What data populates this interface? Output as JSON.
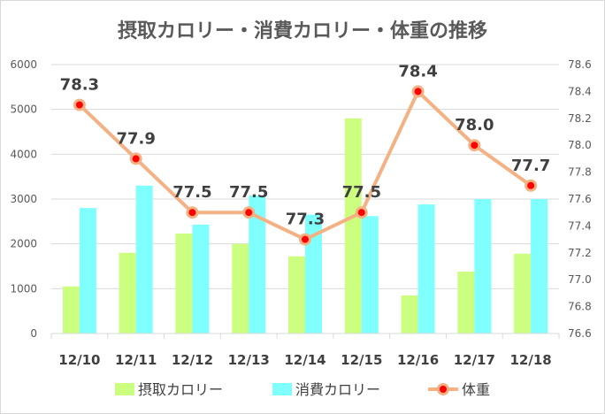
{
  "chart_data": {
    "type": "bar+line",
    "title": "摂取カロリー・消費カロリー・体重の推移",
    "categories": [
      "12/10",
      "12/11",
      "12/12",
      "12/13",
      "12/14",
      "12/15",
      "12/16",
      "12/17",
      "12/18"
    ],
    "y_left": {
      "range": [
        0,
        6000
      ],
      "ticks": [
        "0",
        "1000",
        "2000",
        "3000",
        "4000",
        "5000",
        "6000"
      ]
    },
    "y_right": {
      "range": [
        76.6,
        78.6
      ],
      "ticks": [
        "76.6",
        "76.8",
        "77.0",
        "77.2",
        "77.4",
        "77.6",
        "77.8",
        "78.0",
        "78.2",
        "78.4",
        "78.6"
      ]
    },
    "grid": true,
    "legend_position": "bottom",
    "series": [
      {
        "name": "摂取カロリー",
        "type": "bar",
        "axis": "left",
        "color": "#ccff80",
        "values": [
          1050,
          1800,
          2230,
          2000,
          1720,
          4800,
          850,
          1380,
          1780
        ]
      },
      {
        "name": "消費カロリー",
        "type": "bar",
        "axis": "left",
        "color": "#80ffff",
        "values": [
          2800,
          3300,
          2430,
          3080,
          2650,
          2620,
          2880,
          3000,
          3000
        ]
      },
      {
        "name": "体重",
        "type": "line",
        "axis": "right",
        "color": "#f4b183",
        "marker_color": "#ff0000",
        "values": [
          78.3,
          77.9,
          77.5,
          77.5,
          77.3,
          77.5,
          78.4,
          78.0,
          77.7
        ],
        "labels": [
          "78.3",
          "77.9",
          "77.5",
          "77.5",
          "77.3",
          "77.5",
          "78.4",
          "78.0",
          "77.7"
        ]
      }
    ]
  }
}
